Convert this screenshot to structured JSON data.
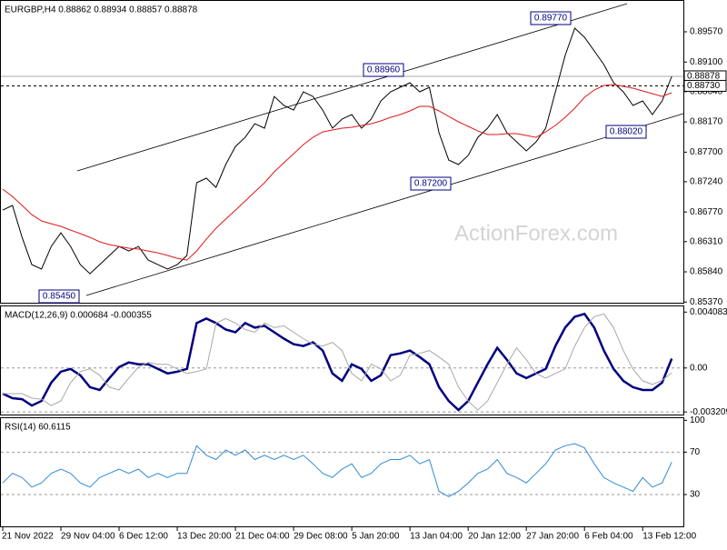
{
  "chart_data": [
    {
      "type": "line",
      "title": "EURGBP,H4 0.88862 0.88934 0.88857 0.88878",
      "watermark": "ActionForex.com",
      "categories": [
        "21 Nov 2022",
        null,
        null,
        null,
        null,
        null,
        "29 Nov 04:00",
        null,
        null,
        null,
        null,
        null,
        "6 Dec 12:00",
        null,
        null,
        null,
        null,
        null,
        "13 Dec 20:00",
        null,
        null,
        null,
        null,
        null,
        "21 Dec 04:00",
        null,
        null,
        null,
        null,
        null,
        "29 Dec 08:00",
        null,
        null,
        null,
        null,
        null,
        "5 Jan 20:00",
        null,
        null,
        null,
        null,
        null,
        "13 Jan 04:00",
        null,
        null,
        null,
        null,
        null,
        "20 Jan 12:00",
        null,
        null,
        null,
        null,
        null,
        "27 Jan 20:00",
        null,
        null,
        null,
        null,
        null,
        "6 Feb 04:00",
        null,
        null,
        null,
        null,
        null,
        "13 Feb 12:00",
        null,
        null,
        null
      ],
      "series": [
        {
          "color": "#000000",
          "values": [
            0.868,
            0.86871,
            0.86376,
            0.85952,
            0.85882,
            0.86235,
            0.86447,
            0.86235,
            0.85952,
            0.85811,
            0.85952,
            0.86094,
            0.86235,
            0.86164,
            0.86235,
            0.86023,
            0.85952,
            0.85882,
            0.85952,
            0.86094,
            0.87224,
            0.87295,
            0.87153,
            0.87507,
            0.87789,
            0.8793,
            0.88142,
            0.88072,
            0.88566,
            0.88425,
            0.88354,
            0.88637,
            0.88566,
            0.88354,
            0.88072,
            0.88213,
            0.88284,
            0.88072,
            0.88213,
            0.88496,
            0.88637,
            0.88708,
            0.88778,
            0.88637,
            0.88708,
            0.88001,
            0.87577,
            0.87507,
            0.87648,
            0.8793,
            0.88072,
            0.88284,
            0.88001,
            0.8786,
            0.87719,
            0.8786,
            0.88072,
            0.88637,
            0.89202,
            0.89626,
            0.89485,
            0.89273,
            0.89061,
            0.88778,
            0.88637,
            0.88425,
            0.88496,
            0.88284,
            0.88496,
            0.88878
          ]
        },
        {
          "color": "#e01818",
          "values": [
            0.87125,
            0.87012,
            0.86871,
            0.86729,
            0.86631,
            0.86588,
            0.86546,
            0.86489,
            0.86433,
            0.86376,
            0.86306,
            0.86263,
            0.86235,
            0.86207,
            0.86193,
            0.86164,
            0.86136,
            0.86094,
            0.86051,
            0.86023,
            0.86164,
            0.86348,
            0.86517,
            0.86659,
            0.868,
            0.86941,
            0.87083,
            0.87224,
            0.87394,
            0.87535,
            0.87676,
            0.87817,
            0.8793,
            0.88015,
            0.88044,
            0.88072,
            0.88086,
            0.88114,
            0.88142,
            0.88185,
            0.88241,
            0.88284,
            0.8834,
            0.88411,
            0.88411,
            0.8834,
            0.88255,
            0.88171,
            0.881,
            0.88029,
            0.87973,
            0.87973,
            0.87987,
            0.87987,
            0.87959,
            0.8793,
            0.88015,
            0.88114,
            0.88241,
            0.88383,
            0.88552,
            0.88665,
            0.88736,
            0.8875,
            0.88722,
            0.88694,
            0.88651,
            0.88609,
            0.88566,
            0.88623
          ]
        }
      ],
      "ylim": [
        0.8536,
        0.9005
      ],
      "yticks": [
        {
          "value": 0.8957,
          "label": "0.89570"
        },
        {
          "value": 0.891,
          "label": "0.89100"
        },
        {
          "value": 0.8864,
          "label": "0.88640"
        },
        {
          "value": 0.8817,
          "label": "0.88170"
        },
        {
          "value": 0.877,
          "label": "0.87700"
        },
        {
          "value": 0.8724,
          "label": "0.87240"
        },
        {
          "value": 0.8677,
          "label": "0.86770"
        },
        {
          "value": 0.8631,
          "label": "0.86310"
        },
        {
          "value": 0.8584,
          "label": "0.85840"
        },
        {
          "value": 0.8537,
          "label": "0.85370"
        }
      ],
      "grid": false,
      "price_markers": [
        {
          "value": 0.88878,
          "label": "0.88878",
          "line": "solid"
        },
        {
          "value": 0.8873,
          "label": "0.88730",
          "line": "dashed"
        }
      ],
      "annotations": [
        "0.89770",
        "0.88960",
        "0.87200",
        "0.88020",
        "0.85450"
      ]
    },
    {
      "type": "line",
      "title": "MACD(12,26,9) 0.000684 -0.000355",
      "series": [
        {
          "color": "#000080",
          "width": 2.5,
          "values": [
            -0.001873,
            -0.002208,
            -0.002275,
            -0.002743,
            -0.002408,
            -0.00107,
            -0.000268,
            -6.7e-05,
            -0.000535,
            -0.001405,
            -0.001606,
            -0.000736,
            6.7e-05,
            0.000401,
            0.000268,
            0.000268,
            -6.7e-05,
            -0.000401,
            -0.000268,
            -6.7e-05,
            0.003278,
            0.003613,
            0.003278,
            0.00281,
            0.002609,
            0.003278,
            0.002944,
            0.003077,
            0.002609,
            0.002141,
            0.001739,
            0.001606,
            0.001873,
            0.001271,
            -0.000401,
            -0.000937,
            0.000268,
            -6.7e-05,
            -0.000937,
            -0.000535,
            0.000937,
            0.00107,
            0.001271,
            0.000803,
            0.000268,
            -0.001405,
            -0.002408,
            -0.003077,
            -0.002408,
            -0.00107,
            0.000268,
            0.001472,
            0.000602,
            -0.000401,
            -0.000736,
            -0.000401,
            -6.7e-05,
            0.001606,
            0.002944,
            0.003746,
            0.003947,
            0.002944,
            0.001271,
            -6.7e-05,
            -0.000937,
            -0.001405,
            -0.001606,
            -0.001606,
            -0.00107,
            0.000684
          ]
        },
        {
          "color": "#a8a8a8",
          "width": 1,
          "values": [
            -0.001873,
            -0.001873,
            -0.001873,
            -0.002208,
            -0.002275,
            -0.002743,
            -0.002408,
            -0.00107,
            -0.000268,
            -6.7e-05,
            -0.000535,
            -0.001405,
            -0.001606,
            -0.000736,
            6.7e-05,
            0.000401,
            0.000268,
            0.000268,
            -6.7e-05,
            -0.000401,
            -0.000268,
            -6.7e-05,
            0.003278,
            0.003613,
            0.003278,
            0.00281,
            0.002609,
            0.003278,
            0.002944,
            0.003077,
            0.002609,
            0.002141,
            0.001739,
            0.001606,
            0.001873,
            0.001271,
            -0.000401,
            -0.000937,
            0.000268,
            -6.7e-05,
            -0.000937,
            -0.000535,
            0.000937,
            0.00107,
            0.001271,
            0.000803,
            0.000268,
            -0.001405,
            -0.002408,
            -0.003077,
            -0.002408,
            -0.00107,
            0.000268,
            0.001472,
            0.000602,
            -0.000401,
            -0.000736,
            -0.000401,
            -6.7e-05,
            0.001606,
            0.002944,
            0.003746,
            0.003947,
            0.002944,
            0.001271,
            -6.7e-05,
            -0.000937,
            -0.0012,
            -0.0009,
            -0.000355
          ]
        }
      ],
      "ylim": [
        -0.0034,
        0.0045
      ],
      "yticks": [
        0.004083,
        {
          "value": 0,
          "label": "0.00"
        },
        -0.003209
      ],
      "grid": true
    },
    {
      "type": "line",
      "title": "RSI(14) 60.6115",
      "series": [
        {
          "color": "#2f8ad8",
          "width": 1,
          "values": [
            41,
            50,
            46,
            37,
            41,
            50,
            54,
            50,
            41,
            37,
            46,
            50,
            54,
            50,
            54,
            46,
            50,
            46,
            50,
            50,
            76,
            67,
            63,
            72,
            67,
            72,
            63,
            67,
            63,
            67,
            63,
            67,
            59,
            50,
            46,
            54,
            59,
            46,
            50,
            59,
            63,
            63,
            67,
            59,
            63,
            33,
            28,
            33,
            41,
            50,
            54,
            63,
            50,
            46,
            41,
            50,
            59,
            72,
            76,
            78,
            74,
            59,
            46,
            41,
            37,
            33,
            46,
            37,
            41,
            60.6115
          ]
        }
      ],
      "ylim": [
        0,
        102
      ],
      "yticks": [
        100,
        70,
        30
      ],
      "grid": true
    }
  ]
}
